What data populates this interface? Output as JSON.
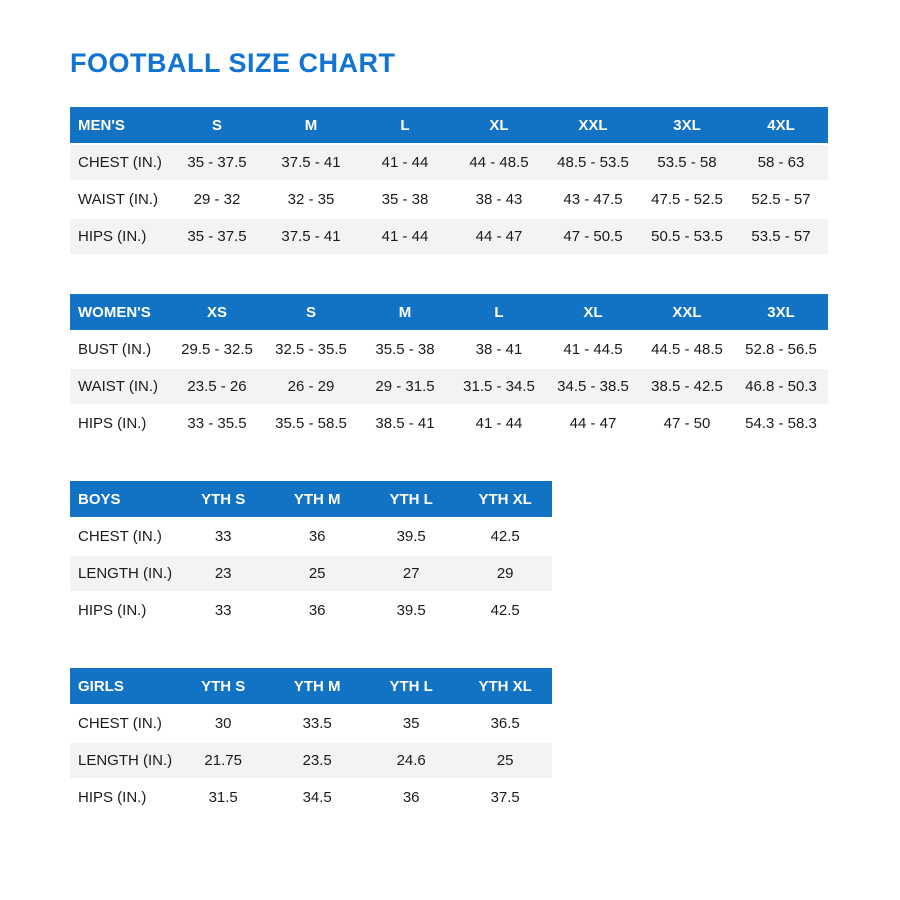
{
  "page": {
    "title": "FOOTBALL SIZE CHART"
  },
  "colors": {
    "title_blue": "#1173d2",
    "header_blue": "#1272c3",
    "row_stripe": "#f3f3f5",
    "text": "#1b1b1d"
  },
  "tables": [
    {
      "id": "mens",
      "header": [
        "MEN'S",
        "S",
        "M",
        "L",
        "XL",
        "XXL",
        "3XL",
        "4XL"
      ],
      "rows": [
        [
          "CHEST (IN.)",
          "35 - 37.5",
          "37.5 - 41",
          "41 - 44",
          "44 - 48.5",
          "48.5 - 53.5",
          "53.5 - 58",
          "58 - 63"
        ],
        [
          "WAIST (IN.)",
          "29 - 32",
          "32 - 35",
          "35 - 38",
          "38 - 43",
          "43 - 47.5",
          "47.5 - 52.5",
          "52.5 - 57"
        ],
        [
          "HIPS (IN.)",
          "35 - 37.5",
          "37.5 - 41",
          "41 - 44",
          "44 - 47",
          "47 - 50.5",
          "50.5 - 53.5",
          "53.5 - 57"
        ]
      ]
    },
    {
      "id": "womens",
      "header": [
        "WOMEN'S",
        "XS",
        "S",
        "M",
        "L",
        "XL",
        "XXL",
        "3XL"
      ],
      "rows": [
        [
          "BUST (IN.)",
          "29.5 - 32.5",
          "32.5 - 35.5",
          "35.5 - 38",
          "38 - 41",
          "41 - 44.5",
          "44.5 - 48.5",
          "52.8 - 56.5"
        ],
        [
          "WAIST (IN.)",
          "23.5 - 26",
          "26 - 29",
          "29 - 31.5",
          "31.5 - 34.5",
          "34.5 - 38.5",
          "38.5 - 42.5",
          "46.8 - 50.3"
        ],
        [
          "HIPS (IN.)",
          "33 - 35.5",
          "35.5 - 58.5",
          "38.5 - 41",
          "41 - 44",
          "44 - 47",
          "47 - 50",
          "54.3 - 58.3"
        ]
      ]
    },
    {
      "id": "boys",
      "header": [
        "BOYS",
        "YTH S",
        "YTH M",
        "YTH L",
        "YTH XL"
      ],
      "rows": [
        [
          "CHEST (IN.)",
          "33",
          "36",
          "39.5",
          "42.5"
        ],
        [
          "LENGTH (IN.)",
          "23",
          "25",
          "27",
          "29"
        ],
        [
          "HIPS (IN.)",
          "33",
          "36",
          "39.5",
          "42.5"
        ]
      ]
    },
    {
      "id": "girls",
      "header": [
        "GIRLS",
        "YTH S",
        "YTH M",
        "YTH L",
        "YTH XL"
      ],
      "rows": [
        [
          "CHEST (IN.)",
          "30",
          "33.5",
          "35",
          "36.5"
        ],
        [
          "LENGTH (IN.)",
          "21.75",
          "23.5",
          "24.6",
          "25"
        ],
        [
          "HIPS (IN.)",
          "31.5",
          "34.5",
          "36",
          "37.5"
        ]
      ]
    }
  ]
}
